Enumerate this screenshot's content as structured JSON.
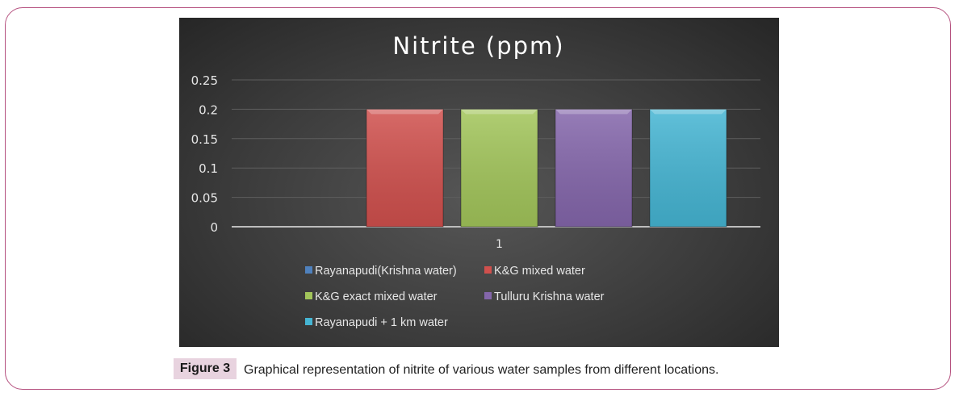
{
  "chart_data": {
    "type": "bar",
    "title": "Nitrite (ppm)",
    "categories": [
      "1"
    ],
    "series": [
      {
        "name": "Rayanapudi(Krishna water)",
        "values": [
          0
        ],
        "color": "#4f81bd"
      },
      {
        "name": "K&G mixed water",
        "values": [
          0.2
        ],
        "color": "#d0504d"
      },
      {
        "name": "K&G exact mixed water",
        "values": [
          0.2
        ],
        "color": "#a2c55a"
      },
      {
        "name": "Tulluru Krishna water",
        "values": [
          0.2
        ],
        "color": "#8466ab"
      },
      {
        "name": "Rayanapudi + 1 km water",
        "values": [
          0.2
        ],
        "color": "#45b5d3"
      }
    ],
    "yticks": [
      "0",
      "0.05",
      "0.1",
      "0.15",
      "0.2",
      "0.25"
    ],
    "ylim": [
      0,
      0.25
    ],
    "xlabel": "",
    "ylabel": "",
    "grid": true,
    "legend": "bottom",
    "background": "#3d3d3d"
  },
  "caption": {
    "label": "Figure 3",
    "text": "Graphical representation of nitrite of various water samples from different locations."
  }
}
